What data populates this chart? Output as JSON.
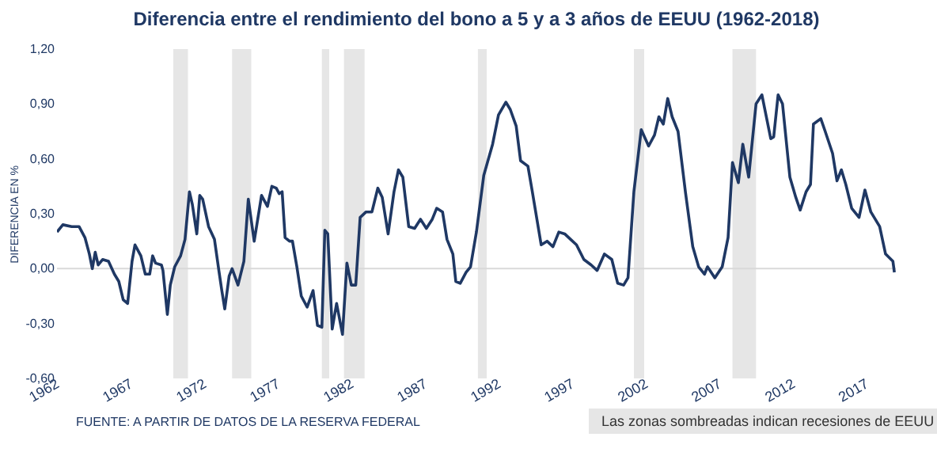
{
  "chart_data": {
    "type": "line",
    "title": "Diferencia entre el rendimiento del bono a 5 y a 3 años de EEUU (1962-2018)",
    "ylabel": "DIFERENCIA EN %",
    "annotations": [
      "FUENTE: A PARTIR DE DATOS DE LA RESERVA FEDERAL",
      "Las zonas sombreadas indican recesiones de EEUU"
    ],
    "x": [
      1962.0,
      1962.4,
      1963.0,
      1963.5,
      1963.9,
      1964.2,
      1964.4,
      1964.6,
      1964.8,
      1965.1,
      1965.5,
      1965.9,
      1966.2,
      1966.5,
      1966.8,
      1967.1,
      1967.3,
      1967.7,
      1968.0,
      1968.3,
      1968.5,
      1968.7,
      1969.1,
      1969.2,
      1969.5,
      1969.7,
      1970.0,
      1970.4,
      1970.7,
      1971.0,
      1971.2,
      1971.5,
      1971.7,
      1971.9,
      1972.3,
      1972.7,
      1973.0,
      1973.2,
      1973.4,
      1973.7,
      1973.9,
      1974.3,
      1974.7,
      1975.0,
      1975.4,
      1975.9,
      1976.3,
      1976.6,
      1976.9,
      1977.1,
      1977.3,
      1977.5,
      1977.8,
      1978.0,
      1978.3,
      1978.6,
      1979.0,
      1979.4,
      1979.7,
      1980.0,
      1980.2,
      1980.4,
      1980.7,
      1981.0,
      1981.4,
      1981.7,
      1982.0,
      1982.3,
      1982.6,
      1983.0,
      1983.4,
      1983.8,
      1984.1,
      1984.5,
      1984.9,
      1985.2,
      1985.5,
      1985.9,
      1986.3,
      1986.7,
      1987.1,
      1987.5,
      1987.8,
      1988.2,
      1988.5,
      1988.9,
      1989.1,
      1989.4,
      1989.8,
      1990.1,
      1990.5,
      1991.0,
      1991.6,
      1992.0,
      1992.5,
      1992.8,
      1993.2,
      1993.5,
      1994.0,
      1994.3,
      1994.9,
      1995.3,
      1995.7,
      1996.1,
      1996.5,
      1996.9,
      1997.3,
      1997.8,
      1998.3,
      1998.7,
      1999.2,
      1999.7,
      2000.1,
      2000.5,
      2000.8,
      2001.2,
      2001.7,
      2002.2,
      2002.6,
      2002.9,
      2003.2,
      2003.5,
      2003.8,
      2004.2,
      2004.7,
      2005.2,
      2005.6,
      2006.0,
      2006.2,
      2006.7,
      2007.2,
      2007.6,
      2007.9,
      2008.3,
      2008.6,
      2009.0,
      2009.5,
      2009.9,
      2010.5,
      2010.7,
      2011.0,
      2011.3,
      2011.8,
      2012.2,
      2012.5,
      2012.9,
      2013.2,
      2013.4,
      2013.9,
      2014.2,
      2014.7,
      2015.0,
      2015.3,
      2015.6,
      2016.0,
      2016.5,
      2016.9,
      2017.3,
      2017.9,
      2018.3,
      2018.8,
      2018.9
    ],
    "series": [
      {
        "color": "#1f3864",
        "values": [
          0.2,
          0.24,
          0.23,
          0.23,
          0.17,
          0.08,
          0.0,
          0.09,
          0.02,
          0.05,
          0.04,
          -0.03,
          -0.07,
          -0.17,
          -0.19,
          0.04,
          0.13,
          0.07,
          -0.03,
          -0.03,
          0.07,
          0.03,
          0.02,
          -0.01,
          -0.25,
          -0.09,
          0.01,
          0.07,
          0.16,
          0.42,
          0.35,
          0.19,
          0.4,
          0.38,
          0.23,
          0.16,
          -0.01,
          -0.12,
          -0.22,
          -0.04,
          0.0,
          -0.09,
          0.04,
          0.38,
          0.15,
          0.4,
          0.34,
          0.45,
          0.44,
          0.41,
          0.42,
          0.17,
          0.15,
          0.15,
          0.01,
          -0.15,
          -0.21,
          -0.12,
          -0.31,
          -0.32,
          0.21,
          0.19,
          -0.33,
          -0.19,
          -0.36,
          0.03,
          -0.09,
          -0.09,
          0.28,
          0.31,
          0.31,
          0.44,
          0.39,
          0.19,
          0.42,
          0.54,
          0.5,
          0.23,
          0.22,
          0.27,
          0.22,
          0.27,
          0.33,
          0.31,
          0.16,
          0.08,
          -0.07,
          -0.08,
          -0.02,
          0.01,
          0.2,
          0.51,
          0.68,
          0.84,
          0.91,
          0.87,
          0.78,
          0.59,
          0.56,
          0.42,
          0.13,
          0.15,
          0.12,
          0.2,
          0.19,
          0.16,
          0.13,
          0.05,
          0.02,
          -0.01,
          0.08,
          0.05,
          -0.08,
          -0.09,
          -0.05,
          0.42,
          0.76,
          0.67,
          0.73,
          0.83,
          0.79,
          0.93,
          0.83,
          0.75,
          0.42,
          0.12,
          0.01,
          -0.03,
          0.01,
          -0.05,
          0.01,
          0.17,
          0.58,
          0.47,
          0.68,
          0.5,
          0.9,
          0.95,
          0.71,
          0.72,
          0.95,
          0.9,
          0.5,
          0.39,
          0.32,
          0.42,
          0.46,
          0.79,
          0.82,
          0.75,
          0.63,
          0.48,
          0.54,
          0.46,
          0.33,
          0.28,
          0.43,
          0.31,
          0.23,
          0.08,
          0.04,
          -0.02
        ]
      }
    ],
    "xlim": [
      1962,
      2019
    ],
    "xticks": [
      1962,
      1967,
      1972,
      1977,
      1982,
      1987,
      1992,
      1997,
      2002,
      2007,
      2012,
      2017
    ],
    "ylim": [
      -0.6,
      1.2
    ],
    "yticks": [
      {
        "value": -0.6,
        "label": "-0,60"
      },
      {
        "value": -0.3,
        "label": "-0,30"
      },
      {
        "value": 0,
        "label": "0,00"
      },
      {
        "value": 0.3,
        "label": "0,30"
      },
      {
        "value": 0.6,
        "label": "0,60"
      },
      {
        "value": 0.9,
        "label": "0,90"
      },
      {
        "value": 1.2,
        "label": "1,20"
      }
    ],
    "bands": [
      {
        "axis": "x",
        "from": 1969.9,
        "to": 1970.9,
        "color": "#e6e6e6"
      },
      {
        "axis": "x",
        "from": 1973.9,
        "to": 1975.2,
        "color": "#e6e6e6"
      },
      {
        "axis": "x",
        "from": 1980.0,
        "to": 1980.5,
        "color": "#e6e6e6"
      },
      {
        "axis": "x",
        "from": 1981.5,
        "to": 1982.9,
        "color": "#e6e6e6"
      },
      {
        "axis": "x",
        "from": 1990.6,
        "to": 1991.2,
        "color": "#e6e6e6"
      },
      {
        "axis": "x",
        "from": 2001.2,
        "to": 2001.9,
        "color": "#e6e6e6"
      },
      {
        "axis": "x",
        "from": 2007.9,
        "to": 2009.5,
        "color": "#e6e6e6"
      }
    ],
    "ref_lines": [
      {
        "axis": "y",
        "value": 0,
        "color": "#d9d9d9"
      }
    ],
    "grid": false,
    "marker": "none",
    "line_style": "solid"
  }
}
